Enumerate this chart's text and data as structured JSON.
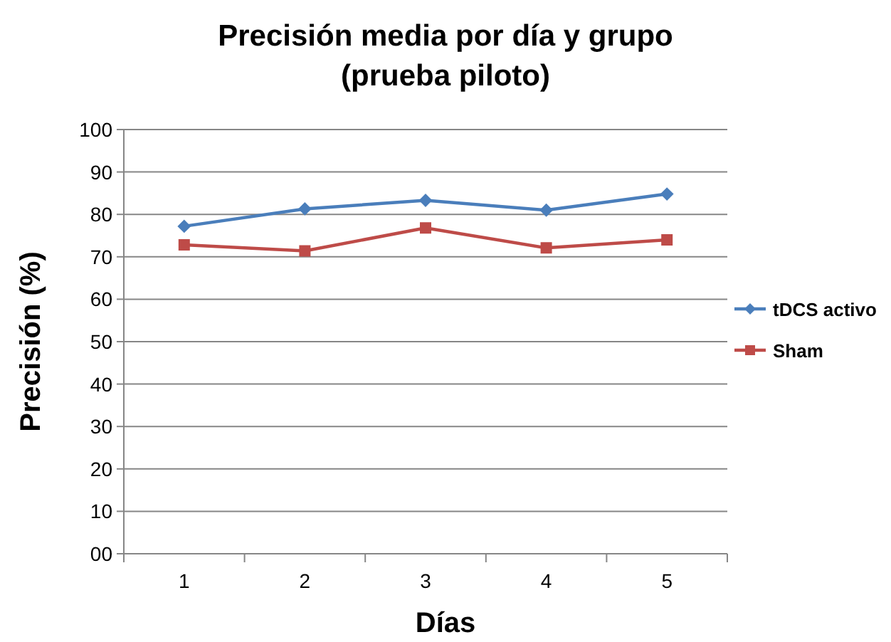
{
  "chart_data": {
    "type": "line",
    "title": "Precisión media por día y grupo\n(prueba piloto)",
    "xlabel": "Días",
    "ylabel": "Precisión (%)",
    "categories": [
      "1",
      "2",
      "3",
      "4",
      "5"
    ],
    "series": [
      {
        "name": "tDCS activo",
        "color": "#4a7ebb",
        "marker": "diamond",
        "values": [
          77.2,
          81.3,
          83.3,
          81,
          84.8
        ]
      },
      {
        "name": "Sham",
        "color": "#be4b48",
        "marker": "square",
        "values": [
          72.8,
          71.4,
          76.8,
          72.1,
          74
        ]
      }
    ],
    "ylim": [
      0,
      100
    ],
    "yticks": [
      {
        "value": 0,
        "label": "00"
      },
      10,
      20,
      30,
      40,
      50,
      60,
      70,
      80,
      90,
      100
    ],
    "grid": "y",
    "legend": "right"
  }
}
